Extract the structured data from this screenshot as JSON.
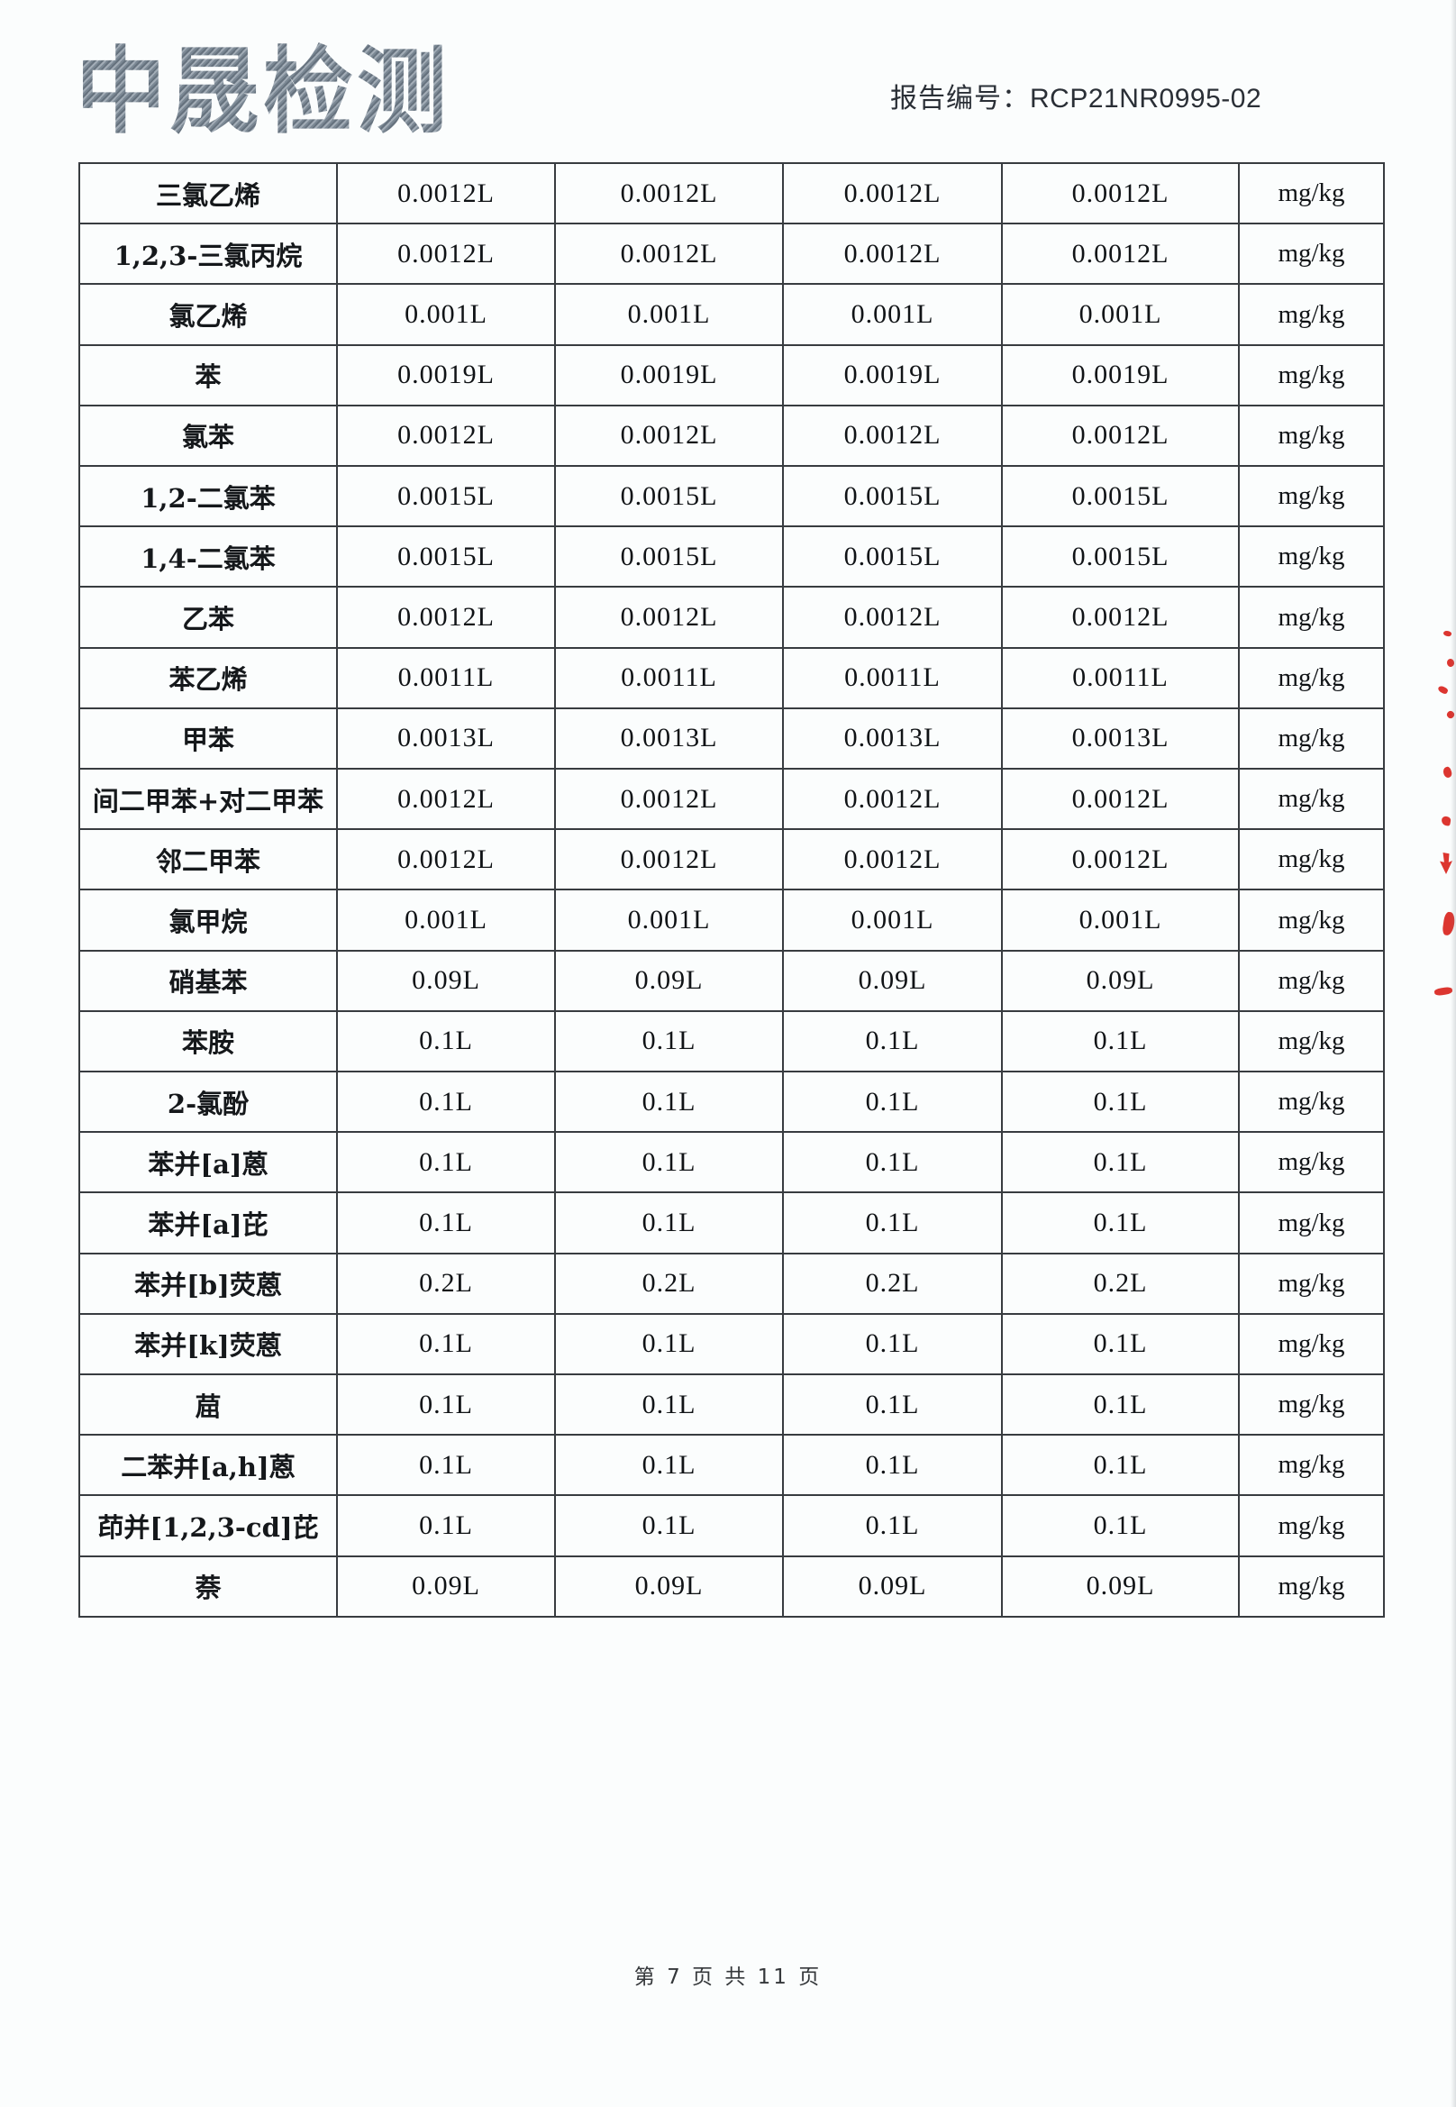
{
  "header": {
    "logo": "中晟检测",
    "report_label": "报告编号：",
    "report_number": "RCP21NR0995-02"
  },
  "table": {
    "rows": [
      {
        "name": "三氯乙烯",
        "values": [
          "0.0012L",
          "0.0012L",
          "0.0012L",
          "0.0012L"
        ],
        "unit": "mg/kg"
      },
      {
        "name": "1,2,3-三氯丙烷",
        "values": [
          "0.0012L",
          "0.0012L",
          "0.0012L",
          "0.0012L"
        ],
        "unit": "mg/kg"
      },
      {
        "name": "氯乙烯",
        "values": [
          "0.001L",
          "0.001L",
          "0.001L",
          "0.001L"
        ],
        "unit": "mg/kg"
      },
      {
        "name": "苯",
        "values": [
          "0.0019L",
          "0.0019L",
          "0.0019L",
          "0.0019L"
        ],
        "unit": "mg/kg"
      },
      {
        "name": "氯苯",
        "values": [
          "0.0012L",
          "0.0012L",
          "0.0012L",
          "0.0012L"
        ],
        "unit": "mg/kg"
      },
      {
        "name": "1,2-二氯苯",
        "values": [
          "0.0015L",
          "0.0015L",
          "0.0015L",
          "0.0015L"
        ],
        "unit": "mg/kg"
      },
      {
        "name": "1,4-二氯苯",
        "values": [
          "0.0015L",
          "0.0015L",
          "0.0015L",
          "0.0015L"
        ],
        "unit": "mg/kg"
      },
      {
        "name": "乙苯",
        "values": [
          "0.0012L",
          "0.0012L",
          "0.0012L",
          "0.0012L"
        ],
        "unit": "mg/kg"
      },
      {
        "name": "苯乙烯",
        "values": [
          "0.0011L",
          "0.0011L",
          "0.0011L",
          "0.0011L"
        ],
        "unit": "mg/kg"
      },
      {
        "name": "甲苯",
        "values": [
          "0.0013L",
          "0.0013L",
          "0.0013L",
          "0.0013L"
        ],
        "unit": "mg/kg"
      },
      {
        "name": "间二甲苯+对二甲苯",
        "values": [
          "0.0012L",
          "0.0012L",
          "0.0012L",
          "0.0012L"
        ],
        "unit": "mg/kg"
      },
      {
        "name": "邻二甲苯",
        "values": [
          "0.0012L",
          "0.0012L",
          "0.0012L",
          "0.0012L"
        ],
        "unit": "mg/kg"
      },
      {
        "name": "氯甲烷",
        "values": [
          "0.001L",
          "0.001L",
          "0.001L",
          "0.001L"
        ],
        "unit": "mg/kg"
      },
      {
        "name": "硝基苯",
        "values": [
          "0.09L",
          "0.09L",
          "0.09L",
          "0.09L"
        ],
        "unit": "mg/kg"
      },
      {
        "name": "苯胺",
        "values": [
          "0.1L",
          "0.1L",
          "0.1L",
          "0.1L"
        ],
        "unit": "mg/kg"
      },
      {
        "name": "2-氯酚",
        "values": [
          "0.1L",
          "0.1L",
          "0.1L",
          "0.1L"
        ],
        "unit": "mg/kg"
      },
      {
        "name": "苯并[a]蒽",
        "values": [
          "0.1L",
          "0.1L",
          "0.1L",
          "0.1L"
        ],
        "unit": "mg/kg"
      },
      {
        "name": "苯并[a]芘",
        "values": [
          "0.1L",
          "0.1L",
          "0.1L",
          "0.1L"
        ],
        "unit": "mg/kg"
      },
      {
        "name": "苯并[b]荧蒽",
        "values": [
          "0.2L",
          "0.2L",
          "0.2L",
          "0.2L"
        ],
        "unit": "mg/kg"
      },
      {
        "name": "苯并[k]荧蒽",
        "values": [
          "0.1L",
          "0.1L",
          "0.1L",
          "0.1L"
        ],
        "unit": "mg/kg"
      },
      {
        "name": "䓛",
        "values": [
          "0.1L",
          "0.1L",
          "0.1L",
          "0.1L"
        ],
        "unit": "mg/kg"
      },
      {
        "name": "二苯并[a,h]蒽",
        "values": [
          "0.1L",
          "0.1L",
          "0.1L",
          "0.1L"
        ],
        "unit": "mg/kg"
      },
      {
        "name": "茚并[1,2,3-cd]芘",
        "values": [
          "0.1L",
          "0.1L",
          "0.1L",
          "0.1L"
        ],
        "unit": "mg/kg"
      },
      {
        "name": "萘",
        "values": [
          "0.09L",
          "0.09L",
          "0.09L",
          "0.09L"
        ],
        "unit": "mg/kg"
      }
    ]
  },
  "footer": {
    "page_indicator": "第 7 页 共 11 页"
  },
  "colors": {
    "stamp_red": "#d8201a",
    "table_border": "#383c40"
  }
}
